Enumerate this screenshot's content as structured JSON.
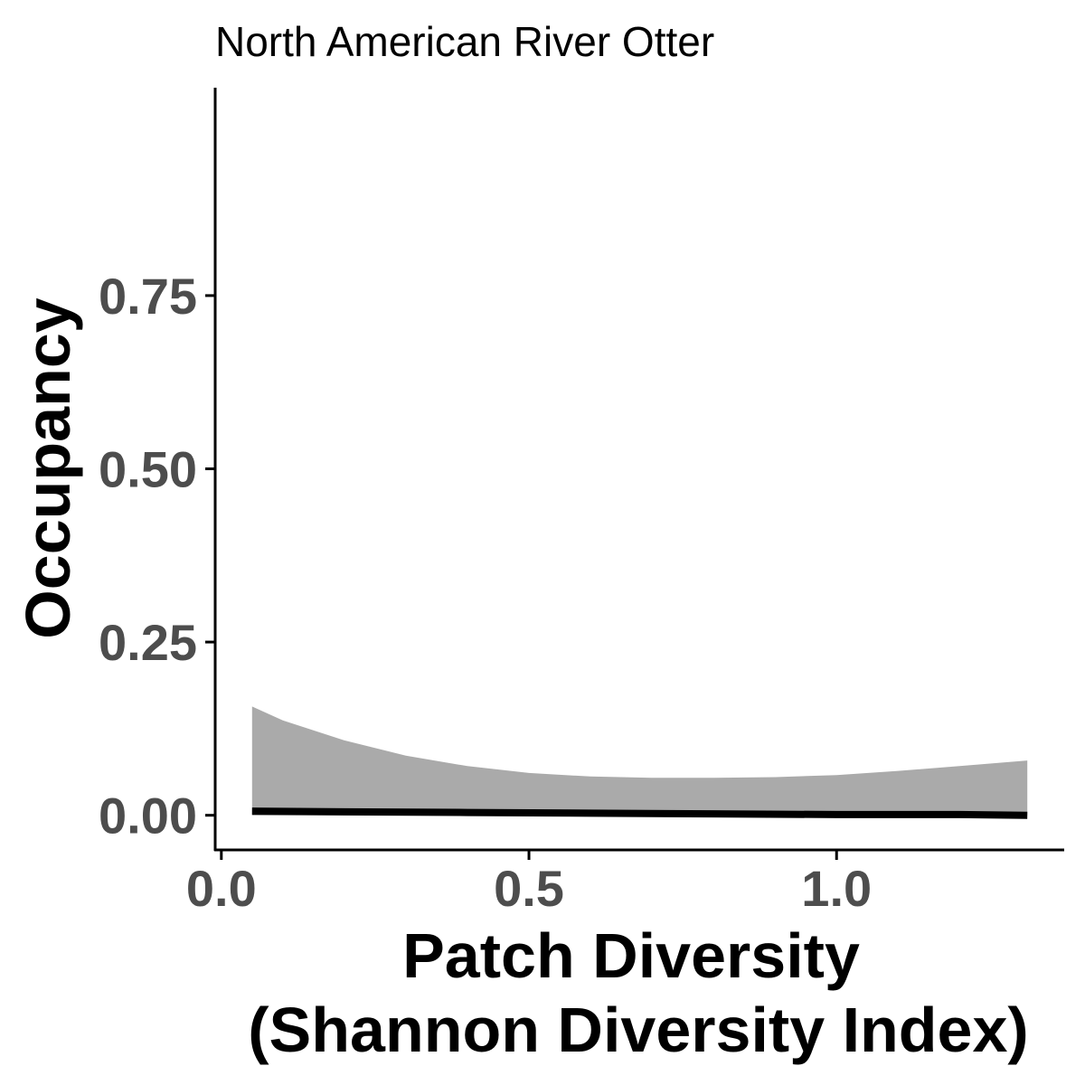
{
  "chart_data": {
    "type": "area",
    "title": "North American River Otter",
    "xlabel_lines": [
      "Patch Diversity",
      "(Shannon Diversity Index)"
    ],
    "ylabel": "Occupancy",
    "xlim": [
      -0.01,
      1.37
    ],
    "ylim": [
      -0.05,
      1.05
    ],
    "x_ticks": [
      0.0,
      0.5,
      1.0
    ],
    "x_tick_labels": [
      "0.0",
      "0.5",
      "1.0"
    ],
    "y_ticks": [
      0.0,
      0.25,
      0.5,
      0.75
    ],
    "y_tick_labels": [
      "0.00",
      "0.25",
      "0.50",
      "0.75"
    ],
    "grid": false,
    "legend": "none",
    "series": [
      {
        "mark": "line",
        "color": "#000000",
        "x": [
          0.05,
          0.2,
          0.4,
          0.6,
          0.8,
          1.0,
          1.2,
          1.31
        ],
        "y": [
          0.006,
          0.005,
          0.004,
          0.003,
          0.002,
          0.001,
          0.001,
          0.0
        ]
      },
      {
        "mark": "ribbon",
        "color": "#aaaaaa",
        "x": [
          0.05,
          0.1,
          0.2,
          0.3,
          0.4,
          0.5,
          0.6,
          0.7,
          0.8,
          0.9,
          1.0,
          1.1,
          1.2,
          1.31
        ],
        "y_lower": [
          0.0,
          0.0,
          0.0,
          0.0,
          0.0,
          0.0,
          0.0,
          0.0,
          0.0,
          0.0,
          0.0,
          0.0,
          0.0,
          0.0
        ],
        "y_upper": [
          0.157,
          0.137,
          0.108,
          0.086,
          0.071,
          0.061,
          0.056,
          0.054,
          0.054,
          0.055,
          0.058,
          0.064,
          0.071,
          0.079
        ]
      }
    ]
  }
}
